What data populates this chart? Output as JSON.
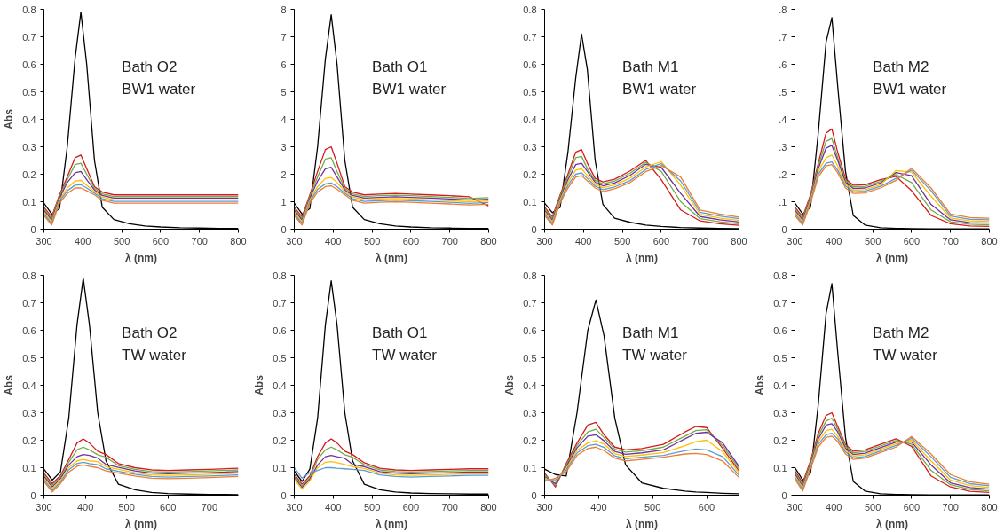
{
  "chart_data": [
    {
      "type": "line",
      "xlabel": "λ (nm)",
      "ylabel": "Abs",
      "annotations": [
        "Bath O2",
        "BW1 water"
      ],
      "xlim": [
        300,
        800
      ],
      "ylim": [
        0,
        0.8
      ],
      "xticks": [
        300,
        400,
        500,
        600,
        700,
        800
      ],
      "yticks": [
        0,
        0.1,
        0.2,
        0.3,
        0.4,
        0.5,
        0.6,
        0.7,
        0.8
      ],
      "x": [
        300,
        320,
        340,
        360,
        380,
        395,
        410,
        430,
        450,
        480,
        520,
        560,
        600,
        650,
        700,
        750,
        800
      ],
      "series": [
        {
          "color": "#000000",
          "values": [
            0.095,
            0.055,
            0.075,
            0.3,
            0.62,
            0.79,
            0.6,
            0.25,
            0.08,
            0.035,
            0.02,
            0.012,
            0.008,
            0.005,
            0.004,
            0.003,
            0.003
          ]
        },
        {
          "color": "#d7191c",
          "values": [
            0.08,
            0.045,
            0.125,
            0.19,
            0.26,
            0.27,
            0.22,
            0.155,
            0.135,
            0.125,
            0.125,
            0.125,
            0.125,
            0.125,
            0.125,
            0.125,
            0.125
          ]
        },
        {
          "color": "#70ad47",
          "values": [
            0.074,
            0.039,
            0.119,
            0.18,
            0.235,
            0.24,
            0.2,
            0.149,
            0.129,
            0.119,
            0.119,
            0.119,
            0.119,
            0.119,
            0.119,
            0.119,
            0.119
          ]
        },
        {
          "color": "#7030a0",
          "values": [
            0.068,
            0.033,
            0.113,
            0.17,
            0.205,
            0.21,
            0.18,
            0.143,
            0.123,
            0.113,
            0.113,
            0.113,
            0.113,
            0.113,
            0.113,
            0.113,
            0.113
          ]
        },
        {
          "color": "#ffc000",
          "values": [
            0.062,
            0.027,
            0.107,
            0.15,
            0.175,
            0.178,
            0.16,
            0.137,
            0.117,
            0.107,
            0.107,
            0.107,
            0.107,
            0.107,
            0.107,
            0.107,
            0.107
          ]
        },
        {
          "color": "#5b9bd5",
          "values": [
            0.056,
            0.021,
            0.101,
            0.14,
            0.16,
            0.162,
            0.15,
            0.131,
            0.111,
            0.101,
            0.101,
            0.101,
            0.101,
            0.101,
            0.101,
            0.101,
            0.101
          ]
        },
        {
          "color": "#ed7d31",
          "values": [
            0.05,
            0.015,
            0.095,
            0.13,
            0.15,
            0.15,
            0.14,
            0.125,
            0.105,
            0.095,
            0.095,
            0.095,
            0.095,
            0.095,
            0.095,
            0.095,
            0.095
          ]
        }
      ]
    },
    {
      "type": "line",
      "xlabel": "λ (nm)",
      "annotations": [
        "Bath O1",
        "BW1 water"
      ],
      "xlim": [
        300,
        800
      ],
      "ylim": [
        0,
        8
      ],
      "xticks": [
        300,
        400,
        500,
        600,
        700,
        800
      ],
      "yticks": [
        0,
        1,
        2,
        3,
        4,
        5,
        6,
        7,
        8
      ],
      "x": [
        300,
        320,
        340,
        360,
        380,
        395,
        410,
        430,
        450,
        480,
        520,
        560,
        600,
        650,
        700,
        750,
        800
      ],
      "series": [
        {
          "color": "#000000",
          "values": [
            0.95,
            0.55,
            0.75,
            3.0,
            6.2,
            7.8,
            6.0,
            2.5,
            0.8,
            0.35,
            0.2,
            0.12,
            0.08,
            0.05,
            0.04,
            0.03,
            0.03
          ]
        },
        {
          "color": "#d7191c",
          "values": [
            0.8,
            0.45,
            1.25,
            2.1,
            2.9,
            3.0,
            2.4,
            1.55,
            1.35,
            1.25,
            1.28,
            1.3,
            1.28,
            1.25,
            1.22,
            1.18,
            0.84
          ]
        },
        {
          "color": "#70ad47",
          "values": [
            0.74,
            0.39,
            1.19,
            1.9,
            2.55,
            2.6,
            2.1,
            1.49,
            1.29,
            1.19,
            1.22,
            1.24,
            1.22,
            1.19,
            1.16,
            1.12,
            1.15
          ]
        },
        {
          "color": "#7030a0",
          "values": [
            0.68,
            0.33,
            1.13,
            1.75,
            2.2,
            2.25,
            1.9,
            1.43,
            1.23,
            1.13,
            1.16,
            1.18,
            1.16,
            1.13,
            1.1,
            1.06,
            1.09
          ]
        },
        {
          "color": "#ffc000",
          "values": [
            0.62,
            0.27,
            1.07,
            1.55,
            1.85,
            1.88,
            1.7,
            1.37,
            1.17,
            1.07,
            1.1,
            1.12,
            1.1,
            1.07,
            1.04,
            1.0,
            1.03
          ]
        },
        {
          "color": "#5b9bd5",
          "values": [
            0.56,
            0.21,
            1.01,
            1.45,
            1.65,
            1.68,
            1.55,
            1.31,
            1.11,
            1.01,
            1.04,
            1.06,
            1.04,
            1.01,
            0.98,
            0.94,
            0.97
          ]
        },
        {
          "color": "#ed7d31",
          "values": [
            0.5,
            0.15,
            0.95,
            1.35,
            1.55,
            1.58,
            1.45,
            1.25,
            1.05,
            0.95,
            0.98,
            1.0,
            0.98,
            0.95,
            0.92,
            0.88,
            0.91
          ]
        }
      ]
    },
    {
      "type": "line",
      "xlabel": "λ (nm)",
      "annotations": [
        "Bath M1",
        "BW1 water"
      ],
      "xlim": [
        300,
        800
      ],
      "ylim": [
        0,
        0.8
      ],
      "xticks": [
        300,
        400,
        500,
        600,
        700,
        800
      ],
      "yticks": [
        0,
        0.1,
        0.2,
        0.3,
        0.4,
        0.5,
        0.6,
        0.7,
        0.8
      ],
      "x": [
        300,
        320,
        340,
        360,
        380,
        395,
        410,
        430,
        450,
        480,
        520,
        560,
        600,
        650,
        700,
        750,
        800
      ],
      "series": [
        {
          "color": "#000000",
          "values": [
            0.095,
            0.06,
            0.08,
            0.28,
            0.55,
            0.71,
            0.58,
            0.25,
            0.09,
            0.04,
            0.025,
            0.015,
            0.01,
            0.006,
            0.004,
            0.003,
            0.002
          ]
        },
        {
          "color": "#d7191c",
          "values": [
            0.08,
            0.045,
            0.125,
            0.2,
            0.28,
            0.29,
            0.24,
            0.185,
            0.172,
            0.182,
            0.212,
            0.25,
            0.18,
            0.07,
            0.03,
            0.02,
            0.014
          ]
        },
        {
          "color": "#70ad47",
          "values": [
            0.074,
            0.039,
            0.119,
            0.19,
            0.26,
            0.265,
            0.22,
            0.178,
            0.165,
            0.175,
            0.204,
            0.243,
            0.21,
            0.1,
            0.038,
            0.027,
            0.02
          ]
        },
        {
          "color": "#7030a0",
          "values": [
            0.068,
            0.033,
            0.113,
            0.18,
            0.235,
            0.24,
            0.21,
            0.171,
            0.158,
            0.168,
            0.196,
            0.236,
            0.225,
            0.13,
            0.046,
            0.034,
            0.026
          ]
        },
        {
          "color": "#ffc000",
          "values": [
            0.062,
            0.027,
            0.107,
            0.17,
            0.215,
            0.22,
            0.195,
            0.164,
            0.151,
            0.161,
            0.186,
            0.226,
            0.246,
            0.16,
            0.054,
            0.041,
            0.032
          ]
        },
        {
          "color": "#5b9bd5",
          "values": [
            0.056,
            0.021,
            0.101,
            0.16,
            0.2,
            0.205,
            0.185,
            0.157,
            0.144,
            0.154,
            0.177,
            0.217,
            0.239,
            0.175,
            0.062,
            0.048,
            0.038
          ]
        },
        {
          "color": "#ed7d31",
          "values": [
            0.05,
            0.015,
            0.095,
            0.15,
            0.19,
            0.195,
            0.176,
            0.15,
            0.137,
            0.147,
            0.17,
            0.209,
            0.232,
            0.19,
            0.07,
            0.055,
            0.044
          ]
        }
      ]
    },
    {
      "type": "line",
      "xlabel": "λ (nm)",
      "annotations": [
        "Bath M2",
        "BW1 water"
      ],
      "xlim": [
        300,
        800
      ],
      "ylim": [
        0,
        0.8
      ],
      "xticks": [
        300,
        400,
        500,
        600,
        700,
        800
      ],
      "yticks": [
        0,
        {
          "value": 0.1,
          "label": ".1"
        },
        {
          "value": 0.2,
          "label": ".2"
        },
        {
          "value": 0.3,
          "label": ".3"
        },
        {
          "value": 0.4,
          "label": ".4"
        },
        {
          "value": 0.5,
          "label": ".5"
        },
        {
          "value": 0.6,
          "label": ".6"
        },
        {
          "value": 0.7,
          "label": ".7"
        },
        {
          "value": 0.8,
          "label": ".8"
        }
      ],
      "x": [
        300,
        320,
        340,
        360,
        380,
        395,
        410,
        430,
        450,
        480,
        520,
        560,
        600,
        650,
        700,
        750,
        800
      ],
      "series": [
        {
          "color": "#000000",
          "values": [
            0.095,
            0.055,
            0.08,
            0.35,
            0.68,
            0.77,
            0.52,
            0.21,
            0.05,
            0.015,
            0.005,
            0.003,
            0.002,
            0.001,
            0.001,
            0.001,
            0.001
          ]
        },
        {
          "color": "#d7191c",
          "values": [
            0.08,
            0.045,
            0.125,
            0.24,
            0.35,
            0.365,
            0.28,
            0.185,
            0.16,
            0.162,
            0.18,
            0.192,
            0.14,
            0.05,
            0.02,
            0.012,
            0.01
          ]
        },
        {
          "color": "#70ad47",
          "values": [
            0.074,
            0.039,
            0.119,
            0.23,
            0.32,
            0.33,
            0.26,
            0.178,
            0.154,
            0.156,
            0.174,
            0.199,
            0.17,
            0.07,
            0.027,
            0.018,
            0.016
          ]
        },
        {
          "color": "#7030a0",
          "values": [
            0.068,
            0.033,
            0.113,
            0.22,
            0.295,
            0.305,
            0.25,
            0.171,
            0.148,
            0.15,
            0.168,
            0.206,
            0.195,
            0.09,
            0.034,
            0.024,
            0.022
          ]
        },
        {
          "color": "#ffc000",
          "values": [
            0.062,
            0.027,
            0.107,
            0.21,
            0.26,
            0.27,
            0.23,
            0.164,
            0.142,
            0.144,
            0.162,
            0.213,
            0.208,
            0.12,
            0.041,
            0.03,
            0.028
          ]
        },
        {
          "color": "#5b9bd5",
          "values": [
            0.056,
            0.021,
            0.101,
            0.2,
            0.24,
            0.245,
            0.215,
            0.157,
            0.136,
            0.138,
            0.156,
            0.185,
            0.215,
            0.14,
            0.048,
            0.036,
            0.034
          ]
        },
        {
          "color": "#ed7d31",
          "values": [
            0.05,
            0.015,
            0.095,
            0.19,
            0.23,
            0.235,
            0.205,
            0.15,
            0.13,
            0.132,
            0.15,
            0.178,
            0.222,
            0.15,
            0.055,
            0.042,
            0.04
          ]
        }
      ]
    },
    {
      "type": "line",
      "xlabel": "λ (nm)",
      "ylabel": "Abs",
      "annotations": [
        "Bath O2",
        "TW water"
      ],
      "xlim": [
        300,
        770
      ],
      "ylim": [
        0,
        0.8
      ],
      "xticks": [
        300,
        400,
        500,
        600,
        700
      ],
      "yticks": [
        0,
        0.1,
        0.2,
        0.3,
        0.4,
        0.5,
        0.6,
        0.7,
        0.8
      ],
      "x": [
        300,
        320,
        340,
        360,
        380,
        395,
        410,
        430,
        450,
        480,
        520,
        560,
        600,
        650,
        700,
        770
      ],
      "series": [
        {
          "color": "#000000",
          "values": [
            0.095,
            0.055,
            0.085,
            0.28,
            0.62,
            0.79,
            0.62,
            0.3,
            0.125,
            0.04,
            0.02,
            0.01,
            0.006,
            0.004,
            0.003,
            0.002
          ]
        },
        {
          "color": "#d7191c",
          "values": [
            0.08,
            0.042,
            0.072,
            0.13,
            0.19,
            0.205,
            0.19,
            0.16,
            0.148,
            0.115,
            0.1,
            0.092,
            0.09,
            0.092,
            0.094,
            0.098
          ]
        },
        {
          "color": "#70ad47",
          "values": [
            0.074,
            0.036,
            0.066,
            0.12,
            0.165,
            0.175,
            0.165,
            0.147,
            0.138,
            0.108,
            0.094,
            0.086,
            0.084,
            0.086,
            0.088,
            0.092
          ]
        },
        {
          "color": "#7030a0",
          "values": [
            0.068,
            0.03,
            0.06,
            0.11,
            0.14,
            0.148,
            0.145,
            0.135,
            0.112,
            0.101,
            0.088,
            0.08,
            0.078,
            0.08,
            0.082,
            0.086
          ]
        },
        {
          "color": "#ffc000",
          "values": [
            0.062,
            0.024,
            0.054,
            0.1,
            0.125,
            0.13,
            0.125,
            0.122,
            0.104,
            0.094,
            0.082,
            0.074,
            0.072,
            0.074,
            0.076,
            0.08
          ]
        },
        {
          "color": "#5b9bd5",
          "values": [
            0.056,
            0.018,
            0.048,
            0.092,
            0.115,
            0.12,
            0.115,
            0.111,
            0.096,
            0.087,
            0.076,
            0.068,
            0.066,
            0.068,
            0.07,
            0.074
          ]
        },
        {
          "color": "#ed7d31",
          "values": [
            0.05,
            0.012,
            0.042,
            0.084,
            0.105,
            0.11,
            0.105,
            0.1,
            0.088,
            0.08,
            0.07,
            0.062,
            0.06,
            0.062,
            0.064,
            0.068
          ]
        }
      ]
    },
    {
      "type": "line",
      "xlabel": "λ (nm)",
      "ylabel": "Abs",
      "annotations": [
        "Bath O1",
        "TW water"
      ],
      "xlim": [
        300,
        800
      ],
      "ylim": [
        0,
        0.8
      ],
      "xticks": [
        300,
        400,
        500,
        600,
        700,
        800
      ],
      "yticks": [
        0,
        0.1,
        0.2,
        0.3,
        0.4,
        0.5,
        0.6,
        0.7,
        0.8
      ],
      "x": [
        300,
        320,
        340,
        360,
        380,
        395,
        410,
        430,
        450,
        480,
        520,
        560,
        600,
        650,
        700,
        750,
        800
      ],
      "series": [
        {
          "color": "#000000",
          "values": [
            0.088,
            0.05,
            0.095,
            0.28,
            0.62,
            0.78,
            0.62,
            0.3,
            0.125,
            0.04,
            0.02,
            0.012,
            0.008,
            0.006,
            0.005,
            0.004,
            0.004
          ]
        },
        {
          "color": "#d7191c",
          "values": [
            0.076,
            0.04,
            0.07,
            0.14,
            0.19,
            0.205,
            0.19,
            0.16,
            0.148,
            0.118,
            0.098,
            0.092,
            0.09,
            0.092,
            0.094,
            0.096,
            0.096
          ]
        },
        {
          "color": "#70ad47",
          "values": [
            0.07,
            0.034,
            0.064,
            0.13,
            0.165,
            0.175,
            0.165,
            0.147,
            0.138,
            0.111,
            0.092,
            0.086,
            0.084,
            0.086,
            0.088,
            0.09,
            0.09
          ]
        },
        {
          "color": "#7030a0",
          "values": [
            0.064,
            0.028,
            0.058,
            0.11,
            0.14,
            0.145,
            0.14,
            0.134,
            0.112,
            0.104,
            0.086,
            0.08,
            0.078,
            0.08,
            0.082,
            0.084,
            0.084
          ]
        },
        {
          "color": "#ffc000",
          "values": [
            0.058,
            0.022,
            0.052,
            0.1,
            0.12,
            0.122,
            0.118,
            0.112,
            0.104,
            0.097,
            0.08,
            0.074,
            0.072,
            0.074,
            0.076,
            0.078,
            0.078
          ]
        },
        {
          "color": "#5b9bd5",
          "values": [
            0.1,
            0.062,
            0.082,
            0.09,
            0.1,
            0.1,
            0.098,
            0.096,
            0.094,
            0.09,
            0.074,
            0.068,
            0.066,
            0.068,
            0.07,
            0.072,
            0.072
          ]
        }
      ]
    },
    {
      "type": "line",
      "xlabel": "λ (nm)",
      "ylabel": "Abs",
      "annotations": [
        "Bath M1",
        "TW water"
      ],
      "xlim": [
        300,
        660
      ],
      "ylim": [
        0,
        0.8
      ],
      "xticks": [
        300,
        400,
        500,
        600
      ],
      "yticks": [
        0,
        0.1,
        0.2,
        0.3,
        0.4,
        0.5,
        0.6,
        0.7,
        0.8
      ],
      "x": [
        300,
        320,
        340,
        360,
        380,
        395,
        410,
        430,
        450,
        480,
        520,
        560,
        580,
        600,
        630,
        660
      ],
      "series": [
        {
          "color": "#000000",
          "values": [
            0.095,
            0.075,
            0.07,
            0.3,
            0.6,
            0.71,
            0.58,
            0.28,
            0.11,
            0.045,
            0.025,
            0.015,
            0.012,
            0.01,
            0.007,
            0.005
          ]
        },
        {
          "color": "#d7191c",
          "values": [
            0.08,
            0.03,
            0.115,
            0.19,
            0.255,
            0.265,
            0.22,
            0.175,
            0.165,
            0.17,
            0.185,
            0.23,
            0.25,
            0.246,
            0.17,
            0.088
          ]
        },
        {
          "color": "#70ad47",
          "values": [
            0.074,
            0.036,
            0.109,
            0.181,
            0.23,
            0.24,
            0.21,
            0.167,
            0.157,
            0.162,
            0.175,
            0.215,
            0.235,
            0.238,
            0.18,
            0.096
          ]
        },
        {
          "color": "#7030a0",
          "values": [
            0.068,
            0.042,
            0.103,
            0.172,
            0.215,
            0.22,
            0.198,
            0.159,
            0.149,
            0.154,
            0.165,
            0.205,
            0.225,
            0.229,
            0.19,
            0.104
          ]
        },
        {
          "color": "#ffc000",
          "values": [
            0.062,
            0.05,
            0.097,
            0.163,
            0.19,
            0.198,
            0.186,
            0.151,
            0.141,
            0.146,
            0.155,
            0.18,
            0.195,
            0.2,
            0.158,
            0.08
          ]
        },
        {
          "color": "#5b9bd5",
          "values": [
            0.056,
            0.056,
            0.091,
            0.154,
            0.18,
            0.185,
            0.174,
            0.143,
            0.133,
            0.138,
            0.145,
            0.162,
            0.168,
            0.165,
            0.14,
            0.072
          ]
        },
        {
          "color": "#ed7d31",
          "values": [
            0.05,
            0.062,
            0.085,
            0.145,
            0.17,
            0.175,
            0.162,
            0.135,
            0.125,
            0.13,
            0.138,
            0.15,
            0.152,
            0.148,
            0.124,
            0.064
          ]
        }
      ]
    },
    {
      "type": "line",
      "xlabel": "λ (nm)",
      "ylabel": "Abs",
      "annotations": [
        "Bath M2",
        "TW water"
      ],
      "xlim": [
        300,
        800
      ],
      "ylim": [
        0,
        0.8
      ],
      "xticks": [
        300,
        400,
        500,
        600,
        700,
        800
      ],
      "yticks": [
        0,
        0.1,
        0.2,
        0.3,
        0.4,
        0.5,
        0.6,
        0.7,
        0.8
      ],
      "x": [
        300,
        320,
        340,
        360,
        380,
        395,
        410,
        430,
        450,
        480,
        520,
        560,
        600,
        650,
        700,
        750,
        800
      ],
      "series": [
        {
          "color": "#000000",
          "values": [
            0.1,
            0.055,
            0.08,
            0.33,
            0.66,
            0.77,
            0.52,
            0.21,
            0.05,
            0.015,
            0.005,
            0.003,
            0.002,
            0.001,
            0.001,
            0.001,
            0.001
          ]
        },
        {
          "color": "#d7191c",
          "values": [
            0.088,
            0.045,
            0.125,
            0.225,
            0.29,
            0.3,
            0.25,
            0.185,
            0.16,
            0.165,
            0.185,
            0.205,
            0.178,
            0.07,
            0.03,
            0.014,
            0.01
          ]
        },
        {
          "color": "#70ad47",
          "values": [
            0.082,
            0.039,
            0.119,
            0.215,
            0.27,
            0.28,
            0.24,
            0.178,
            0.154,
            0.159,
            0.179,
            0.199,
            0.186,
            0.09,
            0.038,
            0.021,
            0.016
          ]
        },
        {
          "color": "#7030a0",
          "values": [
            0.076,
            0.033,
            0.113,
            0.205,
            0.255,
            0.26,
            0.23,
            0.171,
            0.148,
            0.153,
            0.173,
            0.193,
            0.194,
            0.11,
            0.045,
            0.028,
            0.022
          ]
        },
        {
          "color": "#ffc000",
          "values": [
            0.07,
            0.027,
            0.107,
            0.195,
            0.235,
            0.24,
            0.215,
            0.164,
            0.142,
            0.147,
            0.167,
            0.187,
            0.2,
            0.125,
            0.055,
            0.035,
            0.028
          ]
        },
        {
          "color": "#5b9bd5",
          "values": [
            0.064,
            0.021,
            0.101,
            0.185,
            0.22,
            0.225,
            0.205,
            0.157,
            0.136,
            0.141,
            0.161,
            0.181,
            0.207,
            0.14,
            0.065,
            0.042,
            0.034
          ]
        },
        {
          "color": "#ed7d31",
          "values": [
            0.058,
            0.015,
            0.095,
            0.175,
            0.21,
            0.215,
            0.195,
            0.15,
            0.13,
            0.135,
            0.155,
            0.175,
            0.214,
            0.15,
            0.075,
            0.049,
            0.04
          ]
        }
      ]
    }
  ]
}
